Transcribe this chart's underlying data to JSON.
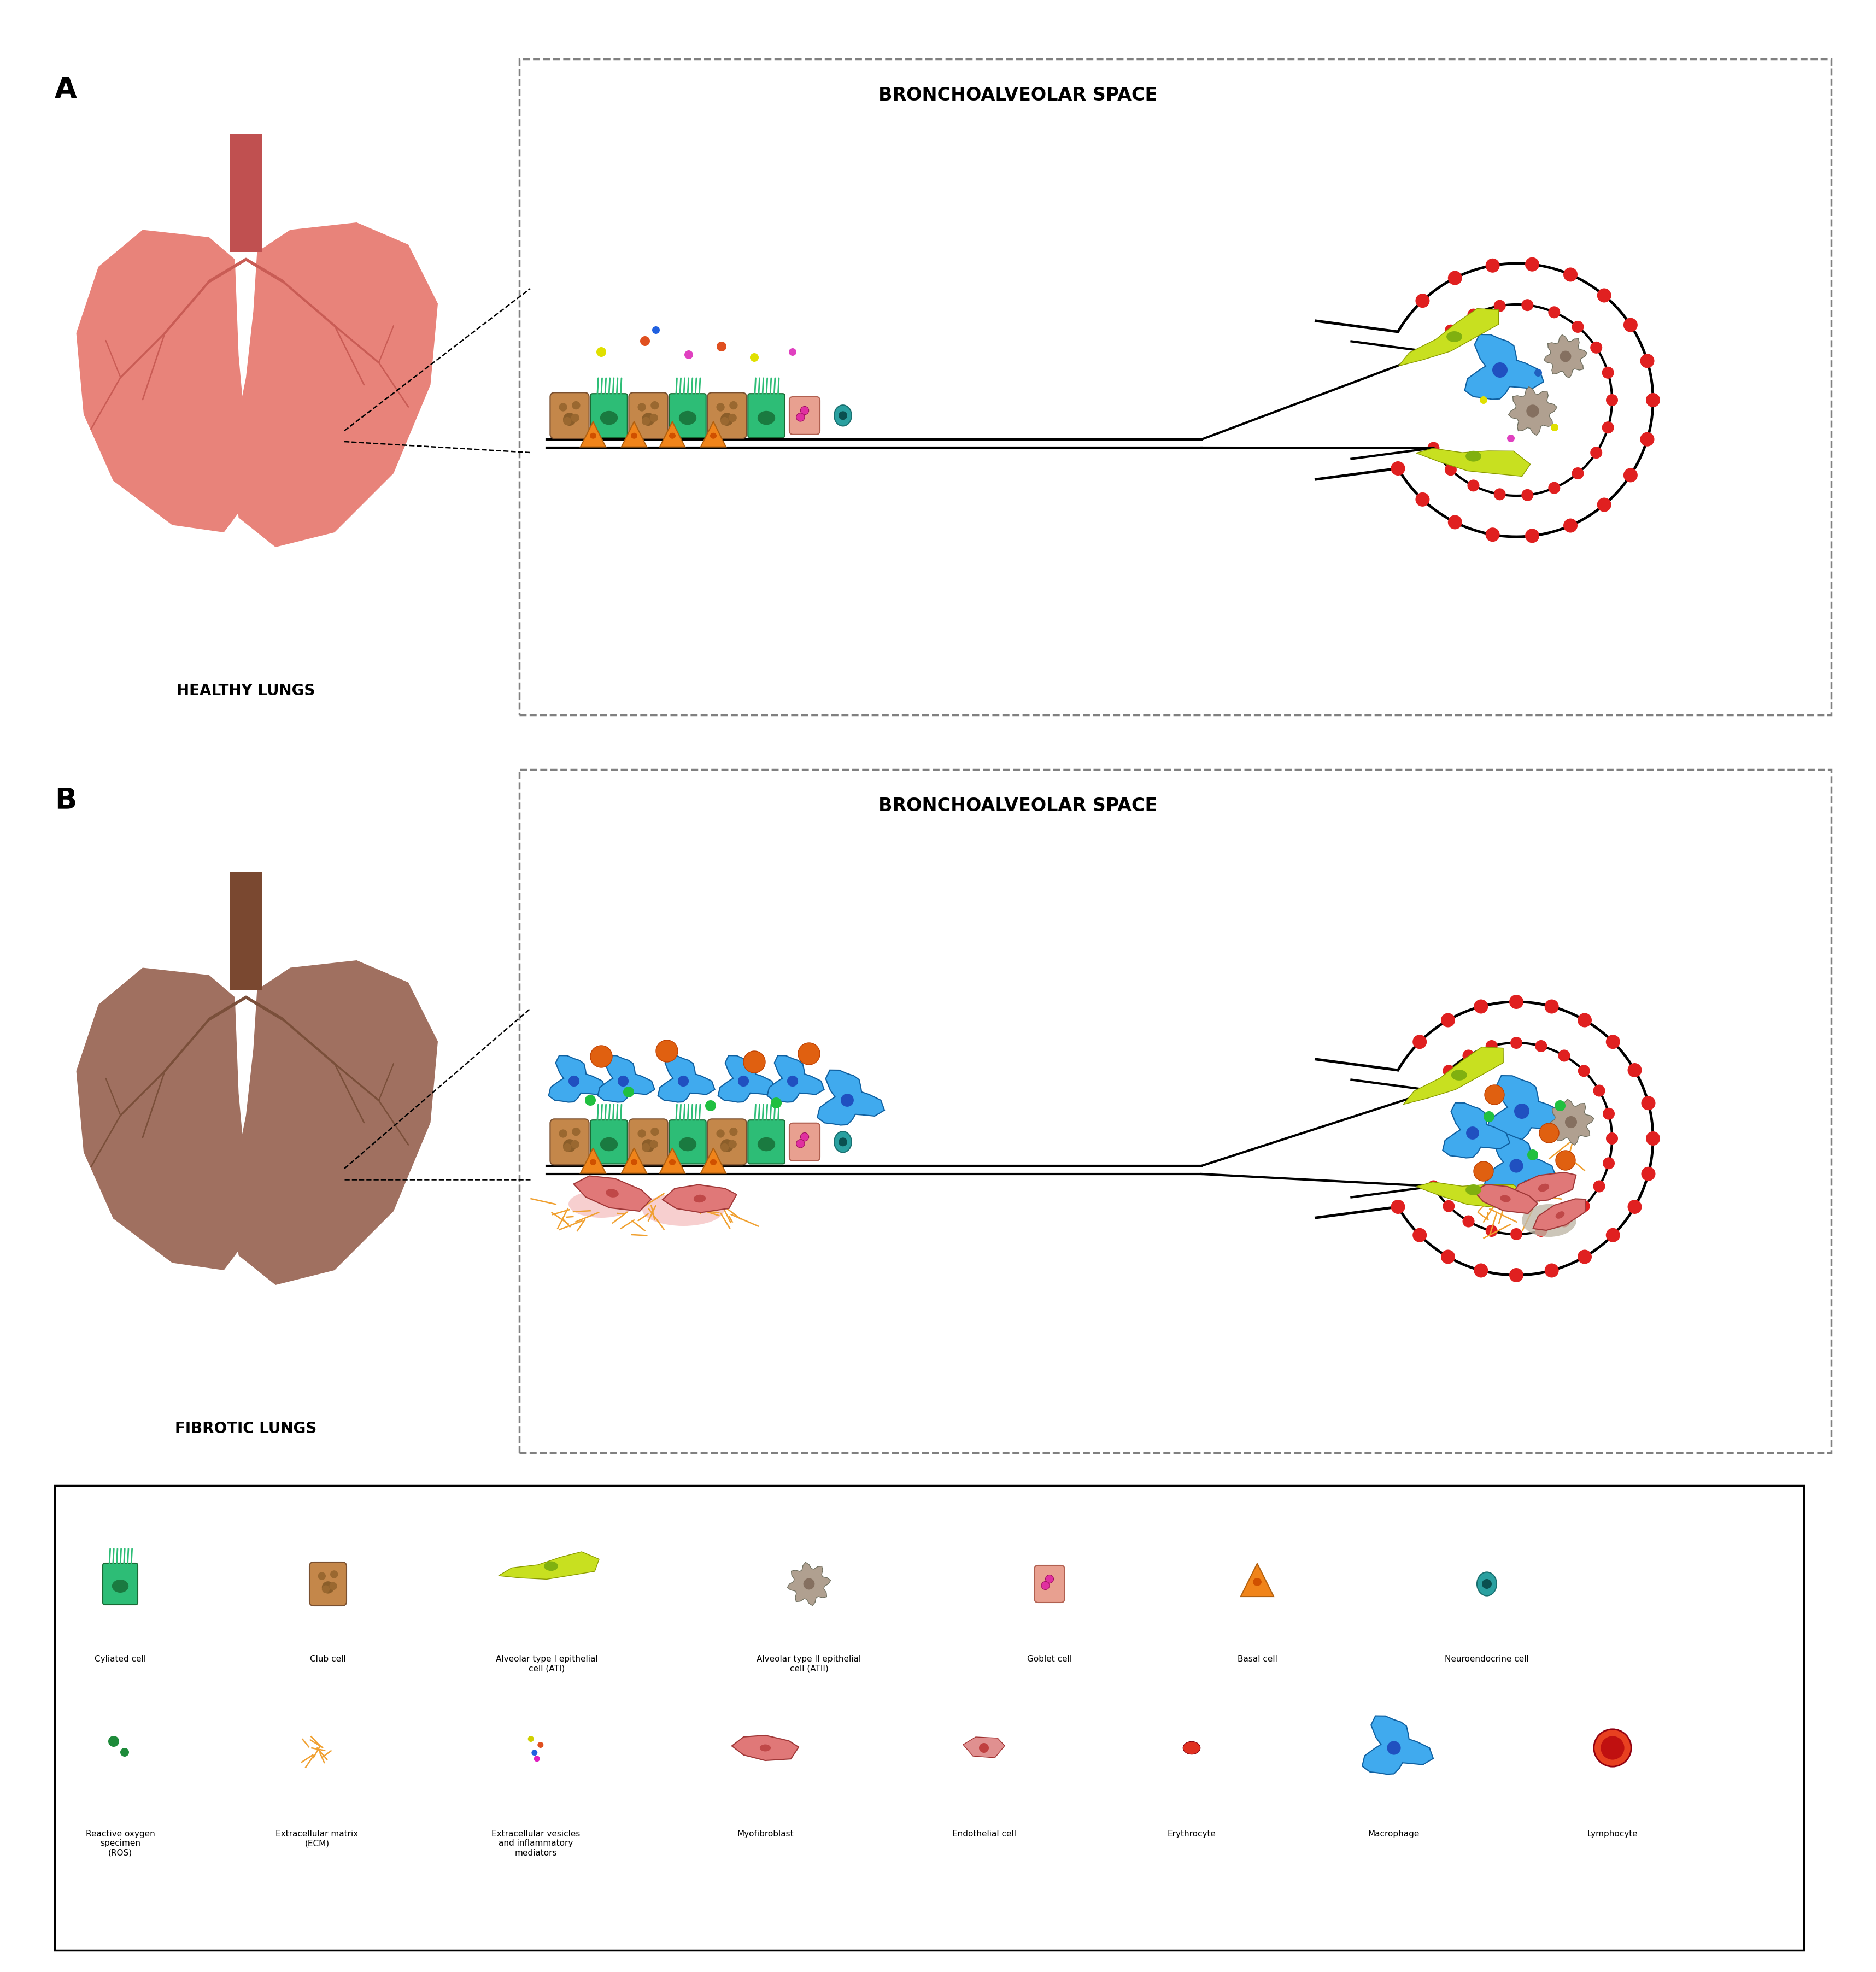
{
  "panel_A_label": "A",
  "panel_B_label": "B",
  "healthy_lungs_label": "HEALTHY LUNGS",
  "fibrotic_lungs_label": "FIBROTIC LUNGS",
  "bronchoalveolar_label": "BRONCHOALVEOLAR SPACE",
  "healthy_lung_color": "#E8837A",
  "healthy_lung_dark": "#C95C55",
  "fibrotic_lung_color": "#A07060",
  "fibrotic_lung_dark": "#7A4F3A",
  "trachea_healthy": "#C05050",
  "trachea_fibrotic": "#7A4830",
  "legend_items_row1": [
    "Cyliated cell",
    "Club cell",
    "Alveolar type I epithelial\ncell (ATI)",
    "Alveolar type II epithelial\ncell (ATII)",
    "Goblet cell",
    "Basal cell",
    "Neuroendocrine cell"
  ],
  "legend_items_row2": [
    "Reactive oxygen\nspecimen\n(ROS)",
    "Extracellular matrix\n(ECM)",
    "Extracellular vesicles\nand inflammatory\nmediators",
    "Myofibroblast",
    "Endothelial cell",
    "Erythrocyte",
    "Macrophage",
    "Lymphocyte"
  ],
  "green_cell": "#2DBD76",
  "green_dark": "#1A7A40",
  "brown_cell": "#C4874A",
  "brown_dark": "#8B5E2A",
  "yellow_green": "#C8E020",
  "gray_cell": "#B0A090",
  "salmon_cell": "#E8A090",
  "orange_cell": "#F0841A",
  "teal_cell": "#2AA0A0",
  "blue_macro": "#40AAEE",
  "blue_dark": "#2050C0",
  "red_ery": "#E03020",
  "orange_ecm": "#F0A030",
  "pink_dot": "#E040A0",
  "green_dot": "#20C040",
  "orange_dot": "#F06010"
}
